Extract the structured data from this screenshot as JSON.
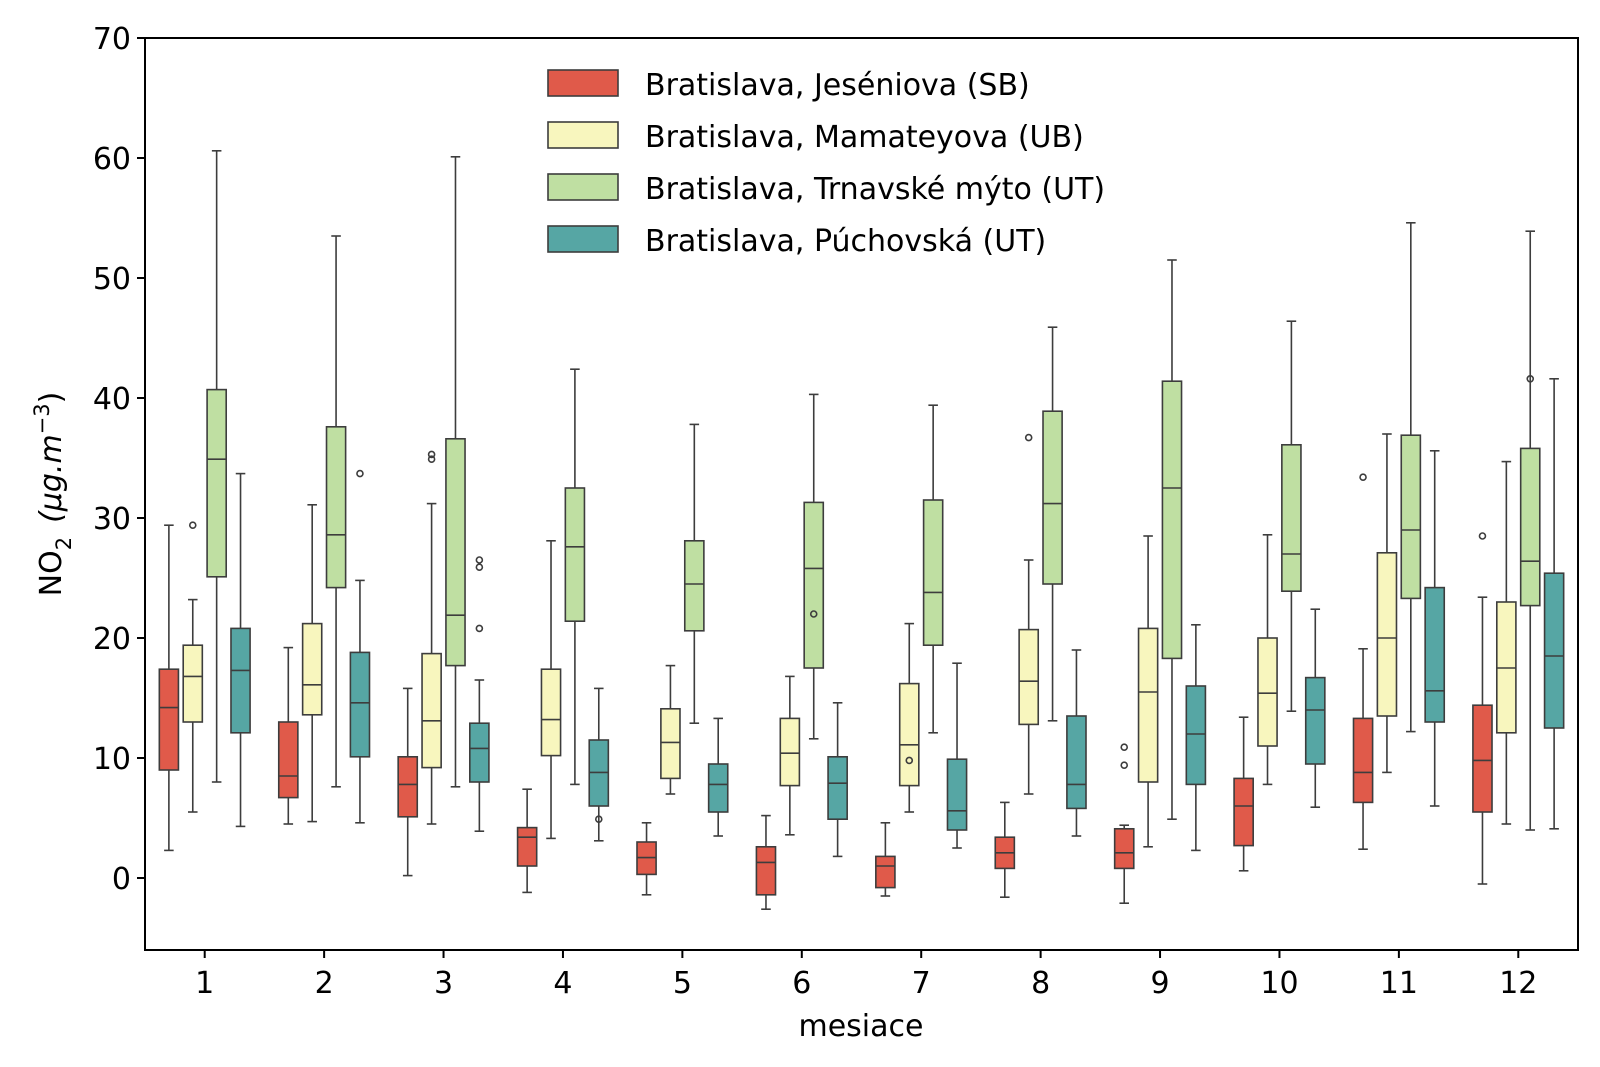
{
  "chart_data": {
    "type": "boxplot",
    "xlabel": "mesiace",
    "ylabel_main": "NO",
    "ylabel_sub": "2",
    "ylabel_unit": "(μg.m",
    "ylabel_exp": "−3",
    "ylabel_close": ")",
    "ylim": [
      -6,
      70
    ],
    "yticks": [
      0,
      10,
      20,
      30,
      40,
      50,
      60,
      70
    ],
    "categories": [
      "1",
      "2",
      "3",
      "4",
      "5",
      "6",
      "7",
      "8",
      "9",
      "10",
      "11",
      "12"
    ],
    "series": [
      {
        "name": "Bratislava, Jeséniova (SB)",
        "color": "#e05a4a",
        "boxes": [
          {
            "whislo": 2.3,
            "q1": 9.0,
            "med": 14.2,
            "q3": 17.4,
            "whishi": 29.4,
            "fliers": []
          },
          {
            "whislo": 4.5,
            "q1": 6.7,
            "med": 8.5,
            "q3": 13.0,
            "whishi": 19.2,
            "fliers": []
          },
          {
            "whislo": 0.2,
            "q1": 5.1,
            "med": 7.8,
            "q3": 10.1,
            "whishi": 15.8,
            "fliers": []
          },
          {
            "whislo": -1.2,
            "q1": 1.0,
            "med": 3.4,
            "q3": 4.2,
            "whishi": 7.4,
            "fliers": []
          },
          {
            "whislo": -1.4,
            "q1": 0.3,
            "med": 1.7,
            "q3": 3.0,
            "whishi": 4.6,
            "fliers": []
          },
          {
            "whislo": -2.6,
            "q1": -1.4,
            "med": 1.3,
            "q3": 2.6,
            "whishi": 5.2,
            "fliers": []
          },
          {
            "whislo": -1.5,
            "q1": -0.8,
            "med": 1.0,
            "q3": 1.8,
            "whishi": 4.6,
            "fliers": []
          },
          {
            "whislo": -1.6,
            "q1": 0.8,
            "med": 2.1,
            "q3": 3.4,
            "whishi": 6.3,
            "fliers": []
          },
          {
            "whislo": -2.1,
            "q1": 0.8,
            "med": 2.1,
            "q3": 4.1,
            "whishi": 4.4,
            "fliers": [
              9.4,
              10.9
            ]
          },
          {
            "whislo": 0.6,
            "q1": 2.7,
            "med": 6.0,
            "q3": 8.3,
            "whishi": 13.4,
            "fliers": []
          },
          {
            "whislo": 2.4,
            "q1": 6.3,
            "med": 8.8,
            "q3": 13.3,
            "whishi": 19.1,
            "fliers": [
              33.4
            ]
          },
          {
            "whislo": -0.5,
            "q1": 5.5,
            "med": 9.8,
            "q3": 14.4,
            "whishi": 23.4,
            "fliers": [
              28.5
            ]
          }
        ]
      },
      {
        "name": "Bratislava, Mamateyova (UB)",
        "color": "#f8f6be",
        "boxes": [
          {
            "whislo": 5.5,
            "q1": 13.0,
            "med": 16.8,
            "q3": 19.4,
            "whishi": 23.2,
            "fliers": [
              29.4
            ]
          },
          {
            "whislo": 4.7,
            "q1": 13.6,
            "med": 16.1,
            "q3": 21.2,
            "whishi": 31.1,
            "fliers": []
          },
          {
            "whislo": 4.5,
            "q1": 9.2,
            "med": 13.1,
            "q3": 18.7,
            "whishi": 31.2,
            "fliers": [
              34.9,
              35.3
            ]
          },
          {
            "whislo": 3.3,
            "q1": 10.2,
            "med": 13.2,
            "q3": 17.4,
            "whishi": 28.1,
            "fliers": []
          },
          {
            "whislo": 7.0,
            "q1": 8.3,
            "med": 11.3,
            "q3": 14.1,
            "whishi": 17.7,
            "fliers": []
          },
          {
            "whislo": 3.6,
            "q1": 7.7,
            "med": 10.4,
            "q3": 13.3,
            "whishi": 16.8,
            "fliers": []
          },
          {
            "whislo": 5.5,
            "q1": 7.7,
            "med": 11.1,
            "q3": 16.2,
            "whishi": 21.2,
            "fliers": [
              9.8
            ]
          },
          {
            "whislo": 7.0,
            "q1": 12.8,
            "med": 16.4,
            "q3": 20.7,
            "whishi": 26.5,
            "fliers": [
              36.7
            ]
          },
          {
            "whislo": 2.6,
            "q1": 8.0,
            "med": 15.5,
            "q3": 20.8,
            "whishi": 28.5,
            "fliers": []
          },
          {
            "whislo": 7.8,
            "q1": 11.0,
            "med": 15.4,
            "q3": 20.0,
            "whishi": 28.6,
            "fliers": []
          },
          {
            "whislo": 8.8,
            "q1": 13.5,
            "med": 20.0,
            "q3": 27.1,
            "whishi": 37.0,
            "fliers": []
          },
          {
            "whislo": 4.5,
            "q1": 12.1,
            "med": 17.5,
            "q3": 23.0,
            "whishi": 34.7,
            "fliers": []
          }
        ]
      },
      {
        "name": "Bratislava, Trnavské mýto (UT)",
        "color": "#bfdfa2",
        "boxes": [
          {
            "whislo": 8.0,
            "q1": 25.1,
            "med": 34.9,
            "q3": 40.7,
            "whishi": 60.6,
            "fliers": []
          },
          {
            "whislo": 7.6,
            "q1": 24.2,
            "med": 28.6,
            "q3": 37.6,
            "whishi": 53.5,
            "fliers": []
          },
          {
            "whislo": 7.6,
            "q1": 17.7,
            "med": 21.9,
            "q3": 36.6,
            "whishi": 60.1,
            "fliers": []
          },
          {
            "whislo": 7.8,
            "q1": 21.4,
            "med": 27.6,
            "q3": 32.5,
            "whishi": 42.4,
            "fliers": []
          },
          {
            "whislo": 12.9,
            "q1": 20.6,
            "med": 24.5,
            "q3": 28.1,
            "whishi": 37.8,
            "fliers": []
          },
          {
            "whislo": 11.6,
            "q1": 17.5,
            "med": 25.8,
            "q3": 31.3,
            "whishi": 40.3,
            "fliers": [
              22.0
            ]
          },
          {
            "whislo": 12.1,
            "q1": 19.4,
            "med": 23.8,
            "q3": 31.5,
            "whishi": 39.4,
            "fliers": []
          },
          {
            "whislo": 13.1,
            "q1": 24.5,
            "med": 31.2,
            "q3": 38.9,
            "whishi": 45.9,
            "fliers": []
          },
          {
            "whislo": 4.9,
            "q1": 18.3,
            "med": 32.5,
            "q3": 41.4,
            "whishi": 51.5,
            "fliers": []
          },
          {
            "whislo": 13.9,
            "q1": 23.9,
            "med": 27.0,
            "q3": 36.1,
            "whishi": 46.4,
            "fliers": []
          },
          {
            "whislo": 12.2,
            "q1": 23.3,
            "med": 29.0,
            "q3": 36.9,
            "whishi": 54.6,
            "fliers": []
          },
          {
            "whislo": 4.0,
            "q1": 22.7,
            "med": 26.4,
            "q3": 35.8,
            "whishi": 53.9,
            "fliers": [
              41.6
            ]
          }
        ]
      },
      {
        "name": "Bratislava, Púchovská (UT)",
        "color": "#56a6a4",
        "boxes": [
          {
            "whislo": 4.3,
            "q1": 12.1,
            "med": 17.3,
            "q3": 20.8,
            "whishi": 33.7,
            "fliers": []
          },
          {
            "whislo": 4.6,
            "q1": 10.1,
            "med": 14.6,
            "q3": 18.8,
            "whishi": 24.8,
            "fliers": [
              33.7
            ]
          },
          {
            "whislo": 3.9,
            "q1": 8.0,
            "med": 10.8,
            "q3": 12.9,
            "whishi": 16.5,
            "fliers": [
              20.8,
              25.9,
              26.5
            ]
          },
          {
            "whislo": 3.1,
            "q1": 6.0,
            "med": 8.8,
            "q3": 11.5,
            "whishi": 15.8,
            "fliers": [
              4.9
            ]
          },
          {
            "whislo": 3.5,
            "q1": 5.5,
            "med": 7.8,
            "q3": 9.5,
            "whishi": 13.3,
            "fliers": []
          },
          {
            "whislo": 1.8,
            "q1": 4.9,
            "med": 7.9,
            "q3": 10.1,
            "whishi": 14.6,
            "fliers": []
          },
          {
            "whislo": 2.5,
            "q1": 4.0,
            "med": 5.6,
            "q3": 9.9,
            "whishi": 17.9,
            "fliers": []
          },
          {
            "whislo": 3.5,
            "q1": 5.8,
            "med": 7.8,
            "q3": 13.5,
            "whishi": 19.0,
            "fliers": []
          },
          {
            "whislo": 2.3,
            "q1": 7.8,
            "med": 12.0,
            "q3": 16.0,
            "whishi": 21.1,
            "fliers": []
          },
          {
            "whislo": 5.9,
            "q1": 9.5,
            "med": 14.0,
            "q3": 16.7,
            "whishi": 22.4,
            "fliers": []
          },
          {
            "whislo": 6.0,
            "q1": 13.0,
            "med": 15.6,
            "q3": 24.2,
            "whishi": 35.6,
            "fliers": []
          },
          {
            "whislo": 4.1,
            "q1": 12.5,
            "med": 18.5,
            "q3": 25.4,
            "whishi": 41.6,
            "fliers": []
          }
        ]
      }
    ],
    "legend_position": "top-center"
  }
}
